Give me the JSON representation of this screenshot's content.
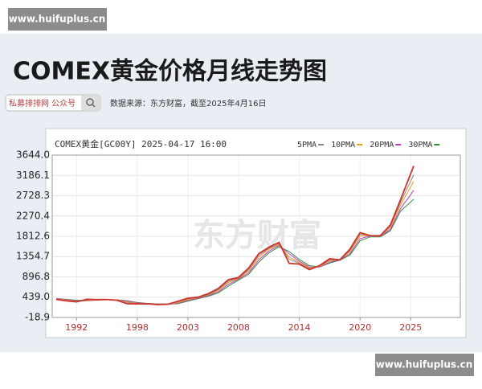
{
  "watermarks": [
    "www.huifuplus.cn",
    "www.huifuplus.cn"
  ],
  "title": "COMEX黄金价格月线走势图",
  "search_box": "私募排排网 公众号",
  "source": "数据来源：东方财富，截至2025年4月16日",
  "chart_data": {
    "type": "line",
    "title": "COMEX黄金[GC00Y] 2025-04-17 16:00",
    "watermark": "东方财富",
    "x": [
      1990,
      1991,
      1992,
      1993,
      1994,
      1995,
      1996,
      1997,
      1998,
      1999,
      2000,
      2001,
      2002,
      2003,
      2004,
      2005,
      2006,
      2007,
      2008,
      2009,
      2010,
      2011,
      2012,
      2013,
      2014,
      2015,
      2016,
      2017,
      2018,
      2019,
      2020,
      2021,
      2022,
      2023,
      2024,
      2025.3
    ],
    "series": [
      {
        "color": "#d0332b",
        "values": [
          390,
          355,
          333,
          390,
          383,
          387,
          369,
          290,
          288,
          290,
          272,
          279,
          347,
          416,
          438,
          517,
          636,
          834,
          884,
          1097,
          1421,
          1566,
          1675,
          1202,
          1184,
          1061,
          1152,
          1305,
          1282,
          1523,
          1895,
          1829,
          1826,
          2072,
          2641,
          3400
        ]
      },
      {
        "name": "5PMA",
        "color": "#8a8a8a",
        "values": [
          395,
          365,
          345,
          370,
          385,
          385,
          375,
          320,
          292,
          289,
          278,
          280,
          330,
          400,
          430,
          500,
          610,
          800,
          870,
          1060,
          1380,
          1540,
          1650,
          1300,
          1200,
          1080,
          1140,
          1280,
          1285,
          1490,
          1860,
          1830,
          1820,
          2040,
          2580,
          3200
        ]
      },
      {
        "name": "10PMA",
        "color": "#e6a21a",
        "values": [
          400,
          370,
          350,
          360,
          380,
          385,
          378,
          335,
          300,
          290,
          282,
          280,
          315,
          385,
          425,
          490,
          590,
          770,
          860,
          1030,
          1340,
          1520,
          1630,
          1350,
          1220,
          1100,
          1130,
          1260,
          1285,
          1460,
          1820,
          1830,
          1815,
          2010,
          2520,
          3050
        ]
      },
      {
        "name": "20PMA",
        "color": "#c03cc0",
        "values": [
          405,
          380,
          360,
          355,
          375,
          383,
          380,
          350,
          310,
          293,
          285,
          281,
          300,
          365,
          415,
          475,
          560,
          730,
          845,
          990,
          1280,
          1480,
          1610,
          1420,
          1250,
          1120,
          1120,
          1230,
          1280,
          1420,
          1760,
          1820,
          1810,
          1970,
          2440,
          2850
        ]
      },
      {
        "name": "30PMA",
        "color": "#2f8f3a",
        "values": [
          410,
          390,
          370,
          360,
          372,
          380,
          380,
          360,
          320,
          298,
          288,
          283,
          292,
          350,
          405,
          460,
          535,
          690,
          825,
          955,
          1230,
          1440,
          1580,
          1470,
          1290,
          1150,
          1120,
          1210,
          1270,
          1390,
          1710,
          1800,
          1800,
          1940,
          2380,
          2650
        ]
      }
    ],
    "xlim": [
      1989.6,
      2029.9
    ],
    "xticks": [
      1992,
      1998,
      2003,
      2008,
      2014,
      2020,
      2025
    ],
    "ylim": [
      -18.9,
      3644.0
    ],
    "yticks": [
      -18.9,
      {
        "value": 439.0,
        "label": "439.0"
      },
      896.8,
      1354.7,
      1812.6,
      2270.4,
      2728.3,
      3186.1,
      {
        "value": 3644.0,
        "label": "3644.0"
      }
    ],
    "grid": true
  }
}
